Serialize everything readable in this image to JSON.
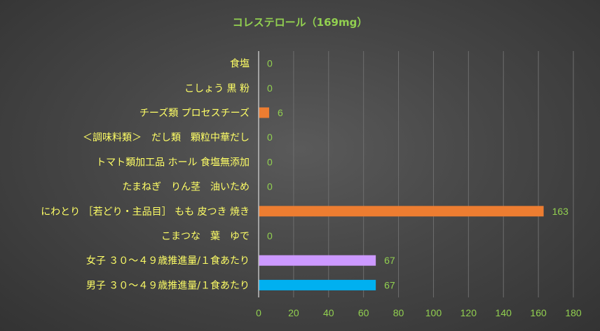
{
  "chart_data": {
    "type": "bar",
    "orientation": "horizontal",
    "title": "コレステロール（169mg）",
    "categories": [
      "食塩",
      "こしょう 黒 粉",
      "チーズ類 プロセスチーズ",
      "＜調味料類＞　だし類　顆粒中華だし",
      "トマト類加工品 ホール 食塩無添加",
      "たまねぎ　りん茎　油いため",
      "にわとり ［若どり・主品目］ もも 皮つき 焼き",
      "こまつな　葉　ゆで",
      "女子 ３０～４９歳推進量/１食あたり",
      "男子 ３０～４９歳推進量/１食あたり"
    ],
    "values": [
      0,
      0,
      6,
      0,
      0,
      0,
      163,
      0,
      67,
      67
    ],
    "bar_colors": [
      "#ED7D31",
      "#ED7D31",
      "#ED7D31",
      "#ED7D31",
      "#ED7D31",
      "#ED7D31",
      "#ED7D31",
      "#ED7D31",
      "#CC99FF",
      "#00B0F0"
    ],
    "xlim": [
      0,
      180
    ],
    "xticks": [
      0,
      20,
      40,
      60,
      80,
      100,
      120,
      140,
      160,
      180
    ],
    "grid": true,
    "legend": "none",
    "colors": {
      "title": "#92D050",
      "category_labels": "#FFFF66",
      "data_labels": "#92D050",
      "tick_labels": "#92D050",
      "gridlines": "#6E6E6E",
      "axis_line": "#BFBFBF"
    }
  }
}
